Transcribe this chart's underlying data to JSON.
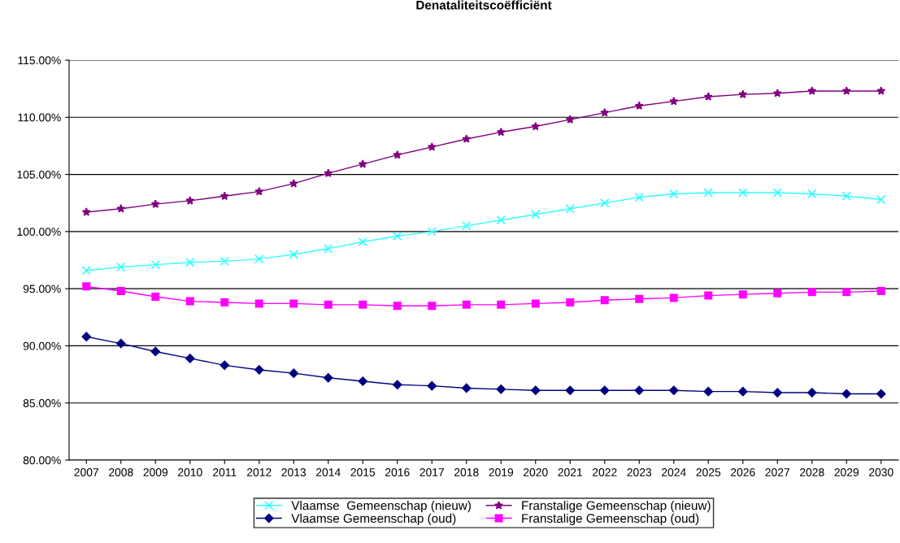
{
  "chart_data": {
    "type": "line",
    "title": "Denataliteitscoëfficiënt",
    "categories": [
      "2007",
      "2008",
      "2009",
      "2010",
      "2011",
      "2012",
      "2013",
      "2014",
      "2015",
      "2016",
      "2017",
      "2018",
      "2019",
      "2020",
      "2021",
      "2022",
      "2023",
      "2024",
      "2025",
      "2026",
      "2027",
      "2028",
      "2029",
      "2030"
    ],
    "series": [
      {
        "name": "Vlaamse  Gemeenschap (nieuw)",
        "color": "#33ffff",
        "marker": "cross",
        "values": [
          96.6,
          96.9,
          97.1,
          97.3,
          97.4,
          97.6,
          98.0,
          98.5,
          99.1,
          99.6,
          100.0,
          100.5,
          101.0,
          101.5,
          102.0,
          102.5,
          103.0,
          103.3,
          103.4,
          103.4,
          103.4,
          103.3,
          103.1,
          102.8
        ]
      },
      {
        "name": "Franstalige Gemeenschap (nieuw)",
        "color": "#800080",
        "marker": "star",
        "values": [
          101.7,
          102.0,
          102.4,
          102.7,
          103.1,
          103.5,
          104.2,
          105.1,
          105.9,
          106.7,
          107.4,
          108.1,
          108.7,
          109.2,
          109.8,
          110.4,
          111.0,
          111.4,
          111.8,
          112.0,
          112.1,
          112.3,
          112.3,
          112.3
        ]
      },
      {
        "name": "Vlaamse Gemeenschap (oud)",
        "color": "#000080",
        "marker": "diamond",
        "values": [
          90.8,
          90.2,
          89.5,
          88.9,
          88.3,
          87.9,
          87.6,
          87.2,
          86.9,
          86.6,
          86.5,
          86.3,
          86.2,
          86.1,
          86.1,
          86.1,
          86.1,
          86.1,
          86.0,
          86.0,
          85.9,
          85.9,
          85.8,
          85.8
        ]
      },
      {
        "name": "Franstalige Gemeenschap (oud)",
        "color": "#ff00ff",
        "marker": "square",
        "values": [
          95.2,
          94.8,
          94.3,
          93.9,
          93.8,
          93.7,
          93.7,
          93.6,
          93.6,
          93.5,
          93.5,
          93.6,
          93.6,
          93.7,
          93.8,
          94.0,
          94.1,
          94.2,
          94.4,
          94.5,
          94.6,
          94.7,
          94.7,
          94.8
        ]
      }
    ],
    "ylim": [
      80,
      115
    ],
    "yticks": [
      {
        "value": 80,
        "label": "80.00%"
      },
      {
        "value": 85,
        "label": "85.00%"
      },
      {
        "value": 90,
        "label": "90.00%"
      },
      {
        "value": 95,
        "label": "95.00%"
      },
      {
        "value": 100,
        "label": "100.00%"
      },
      {
        "value": 105,
        "label": "105.00%"
      },
      {
        "value": 110,
        "label": "110.00%"
      },
      {
        "value": 115,
        "label": "115.00%"
      }
    ],
    "grid": "y",
    "legend": "bottom",
    "line_style": "solid"
  }
}
